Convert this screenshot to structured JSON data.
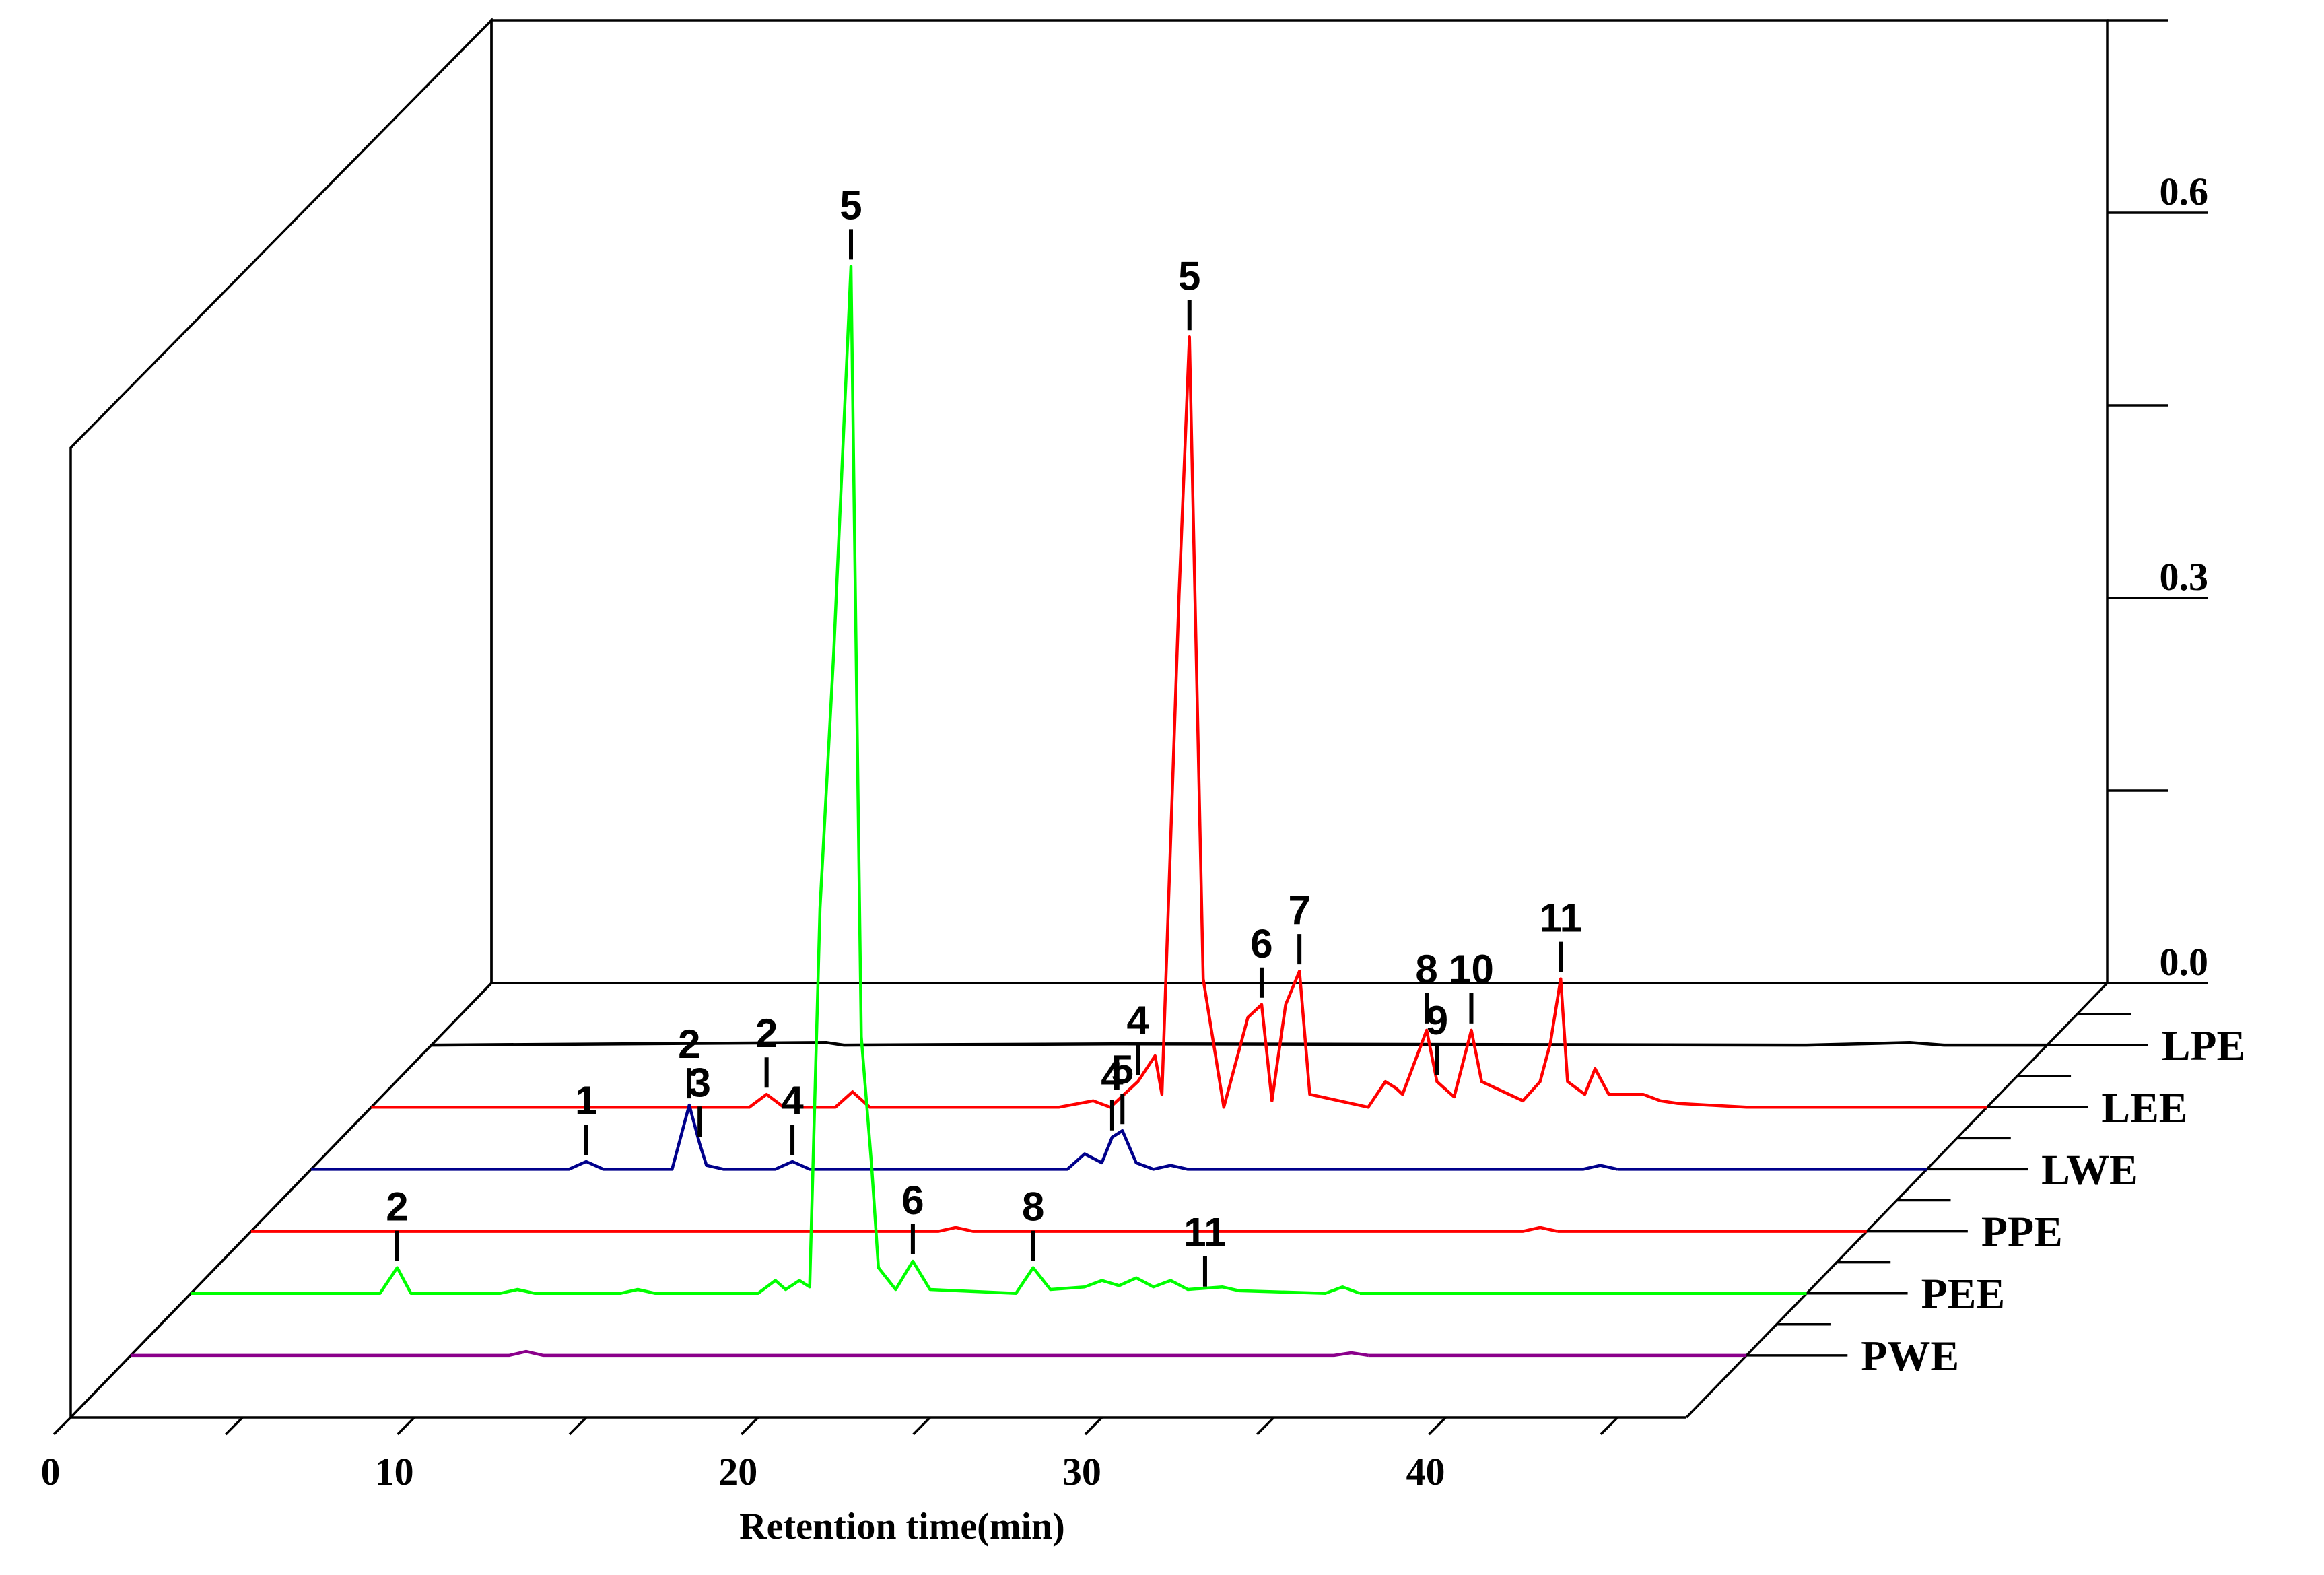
{
  "chart_data": {
    "type": "line",
    "title": "",
    "xlabel": "Retention time(min)",
    "x_ticks": [
      "0",
      "10",
      "20",
      "30",
      "40"
    ],
    "xlim": [
      0,
      47
    ],
    "y_ticks": [
      "0.0",
      "0.3",
      "0.6"
    ],
    "ylim": [
      0.0,
      0.75
    ],
    "grid": false,
    "series": [
      {
        "name": "LPE",
        "color": "#000000",
        "points": [
          [
            0,
            0
          ],
          [
            11.5,
            0.002
          ],
          [
            12,
            0
          ],
          [
            20,
            0.001
          ],
          [
            40,
            0
          ],
          [
            43,
            0.002
          ],
          [
            44,
            0
          ]
        ]
      },
      {
        "name": "LEE",
        "color": "#ff0000",
        "points": [
          [
            0,
            0
          ],
          [
            11,
            0
          ],
          [
            11.5,
            0.01
          ],
          [
            12,
            0
          ],
          [
            13.5,
            0
          ],
          [
            14,
            0.012
          ],
          [
            14.5,
            0
          ],
          [
            20,
            0
          ],
          [
            21,
            0.005
          ],
          [
            21.5,
            0
          ],
          [
            22.3,
            0.02
          ],
          [
            22.8,
            0.04
          ],
          [
            23,
            0.01
          ],
          [
            23.5,
            0.4
          ],
          [
            23.8,
            0.6
          ],
          [
            24.2,
            0.1
          ],
          [
            24.8,
            0
          ],
          [
            25.5,
            0.07
          ],
          [
            25.9,
            0.08
          ],
          [
            26.2,
            0.005
          ],
          [
            26.6,
            0.08
          ],
          [
            27,
            0.106
          ],
          [
            27.3,
            0.01
          ],
          [
            29,
            0
          ],
          [
            29.5,
            0.02
          ],
          [
            29.8,
            0.015
          ],
          [
            30,
            0.01
          ],
          [
            30.7,
            0.06
          ],
          [
            31,
            0.02
          ],
          [
            31.5,
            0.008
          ],
          [
            32,
            0.06
          ],
          [
            32.3,
            0.02
          ],
          [
            33.5,
            0.005
          ],
          [
            34,
            0.02
          ],
          [
            34.3,
            0.05
          ],
          [
            34.6,
            0.1
          ],
          [
            34.8,
            0.02
          ],
          [
            35.3,
            0.01
          ],
          [
            35.6,
            0.03
          ],
          [
            36,
            0.01
          ],
          [
            37,
            0.01
          ],
          [
            37.5,
            0.005
          ],
          [
            38,
            0.003
          ],
          [
            40,
            0
          ]
        ]
      },
      {
        "name": "LWE",
        "color": "#00008b",
        "points": [
          [
            0,
            0
          ],
          [
            7.5,
            0
          ],
          [
            8,
            0.006
          ],
          [
            8.5,
            0
          ],
          [
            10.5,
            0
          ],
          [
            11,
            0.05
          ],
          [
            11.3,
            0.02
          ],
          [
            11.5,
            0.003
          ],
          [
            12,
            0
          ],
          [
            13.5,
            0
          ],
          [
            14,
            0.006
          ],
          [
            14.5,
            0
          ],
          [
            22,
            0
          ],
          [
            22.5,
            0.012
          ],
          [
            23,
            0.005
          ],
          [
            23.3,
            0.025
          ],
          [
            23.6,
            0.03
          ],
          [
            24,
            0.005
          ],
          [
            24.5,
            0
          ],
          [
            25,
            0.003
          ],
          [
            25.5,
            0
          ],
          [
            37,
            0
          ],
          [
            37.5,
            0.003
          ],
          [
            38,
            0
          ]
        ]
      },
      {
        "name": "PPE",
        "color": "#ff0000",
        "points": [
          [
            0,
            0
          ],
          [
            20,
            0
          ],
          [
            20.5,
            0.003
          ],
          [
            21,
            0
          ],
          [
            37,
            0
          ],
          [
            37.5,
            0.003
          ],
          [
            38,
            0
          ]
        ]
      },
      {
        "name": "PEE",
        "color": "#00ff00",
        "points": [
          [
            0,
            0
          ],
          [
            5.5,
            0
          ],
          [
            6,
            0.02
          ],
          [
            6.4,
            0
          ],
          [
            9,
            0
          ],
          [
            9.5,
            0.003
          ],
          [
            10,
            0
          ],
          [
            12.5,
            0
          ],
          [
            13,
            0.003
          ],
          [
            13.5,
            0
          ],
          [
            16.5,
            0
          ],
          [
            17,
            0.01
          ],
          [
            17.3,
            0.003
          ],
          [
            17.7,
            0.01
          ],
          [
            18,
            0.005
          ],
          [
            18.3,
            0.3
          ],
          [
            18.7,
            0.5
          ],
          [
            19.2,
            0.8
          ],
          [
            19.5,
            0.2
          ],
          [
            19.8,
            0.1
          ],
          [
            20,
            0.02
          ],
          [
            20.5,
            0.003
          ],
          [
            21,
            0.025
          ],
          [
            21.5,
            0.003
          ],
          [
            24,
            0
          ],
          [
            24.5,
            0.02
          ],
          [
            25,
            0.003
          ],
          [
            26,
            0.005
          ],
          [
            26.5,
            0.01
          ],
          [
            27,
            0.006
          ],
          [
            27.5,
            0.012
          ],
          [
            28,
            0.005
          ],
          [
            28.5,
            0.01
          ],
          [
            29,
            0.003
          ],
          [
            30,
            0.005
          ],
          [
            30.5,
            0.002
          ],
          [
            33,
            0
          ],
          [
            33.5,
            0.005
          ],
          [
            34,
            0
          ]
        ]
      },
      {
        "name": "PWE",
        "color": "#8b008b",
        "points": [
          [
            0,
            0
          ],
          [
            11,
            0
          ],
          [
            11.5,
            0.003
          ],
          [
            12,
            0
          ],
          [
            35,
            0
          ],
          [
            35.5,
            0.002
          ],
          [
            36,
            0
          ]
        ]
      }
    ],
    "annotations": [
      {
        "text": "5",
        "series": "PEE",
        "x": 19.2
      },
      {
        "text": "5",
        "series": "LEE",
        "x": 23.8
      },
      {
        "text": "2",
        "series": "LEE",
        "x": 11.5
      },
      {
        "text": "4",
        "series": "LEE",
        "x": 22.3
      },
      {
        "text": "6",
        "series": "LEE",
        "x": 25.9
      },
      {
        "text": "7",
        "series": "LEE",
        "x": 27
      },
      {
        "text": "9",
        "series": "LEE",
        "x": 31
      },
      {
        "text": "10",
        "series": "LEE",
        "x": 32
      },
      {
        "text": "11",
        "series": "LEE",
        "x": 34.6
      },
      {
        "text": "8",
        "series": "LEE",
        "x": 30.7
      },
      {
        "text": "1",
        "series": "LWE",
        "x": 8
      },
      {
        "text": "3",
        "series": "LWE",
        "x": 11.3
      },
      {
        "text": "2",
        "series": "LWE",
        "x": 11
      },
      {
        "text": "4",
        "series": "LWE",
        "x": 14
      },
      {
        "text": "4",
        "series": "LWE",
        "x": 23.3
      },
      {
        "text": "5",
        "series": "LWE",
        "x": 23.6
      },
      {
        "text": "2",
        "series": "PEE",
        "x": 6
      },
      {
        "text": "6",
        "series": "PEE",
        "x": 21
      },
      {
        "text": "8",
        "series": "PEE",
        "x": 24.5
      },
      {
        "text": "11",
        "series": "PEE",
        "x": 29.5
      }
    ]
  }
}
